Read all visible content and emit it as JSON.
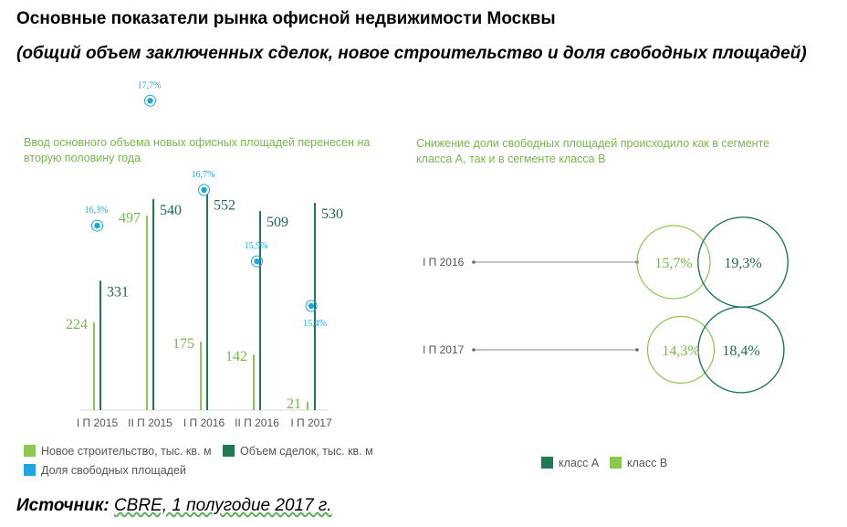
{
  "title": "Основные показатели рынка офисной недвижимости Москвы",
  "subtitle": "(общий объем заключенных сделок, новое строительство и доля свободных площадей)",
  "source": {
    "label": "Источник:",
    "value": "CBRE, 1 полугодие 2017 г."
  },
  "colors": {
    "new": "#8cc751",
    "deals": "#1f7a53",
    "vacancy": "#1ea6e0",
    "light_text": "#77b84a",
    "dark_text": "#1f6b4a"
  },
  "chart_data": [
    {
      "type": "bar",
      "title": "Ввод основного объема новых офисных площадей перенесен на вторую половину года",
      "categories": [
        "I П 2015",
        "II П 2015",
        "I П 2016",
        "II П 2016",
        "I П 2017"
      ],
      "series": [
        {
          "name": "Новое строительство, тыс. кв. м",
          "values": [
            224,
            497,
            175,
            142,
            21
          ],
          "color": "#8cc751"
        },
        {
          "name": "Объем сделок, тыс. кв. м",
          "values": [
            331,
            540,
            552,
            509,
            530
          ],
          "color": "#1f7a53"
        },
        {
          "name": "Доля свободных площадей",
          "values": [
            16.3,
            17.7,
            16.7,
            15.9,
            15.4
          ],
          "labels": [
            "16,3%",
            "17,7%",
            "16,7%",
            "15,9%",
            "15,4%"
          ],
          "color": "#1ea6e0"
        }
      ],
      "legend": [
        "Новое строительство, тыс. кв. м",
        "Объем сделок, тыс. кв. м",
        "Доля свободных площадей"
      ]
    },
    {
      "type": "bubble",
      "title": "Снижение доли свободных площадей происходило как в сегменте класса А, так и в сегменте класса В",
      "categories": [
        "I П 2016",
        "I П 2017"
      ],
      "series": [
        {
          "name": "класс А",
          "values": [
            19.3,
            18.4
          ],
          "labels": [
            "19,3%",
            "18,4%"
          ],
          "color": "#1f7a53"
        },
        {
          "name": "класс В",
          "values": [
            15.7,
            14.3
          ],
          "labels": [
            "15,7%",
            "14,3%"
          ],
          "color": "#8cc751"
        }
      ],
      "legend": [
        "класс А",
        "класс В"
      ]
    }
  ]
}
